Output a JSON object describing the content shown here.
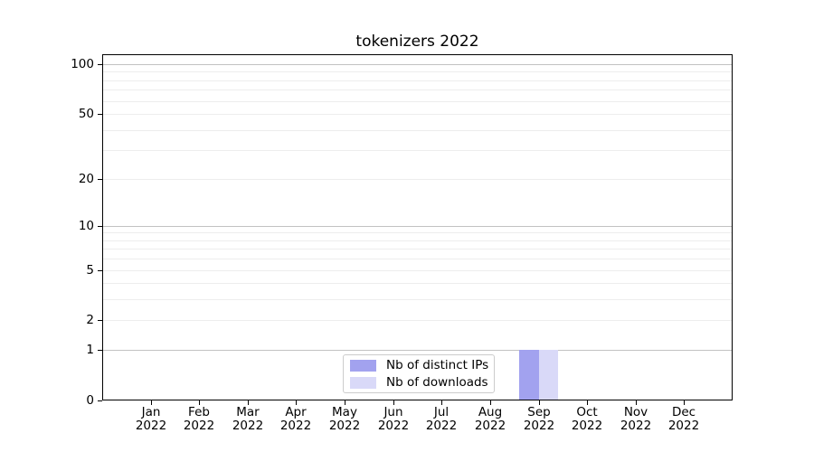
{
  "chart_data": {
    "type": "bar",
    "title": "tokenizers 2022",
    "categories": [
      "Jan 2022",
      "Feb 2022",
      "Mar 2022",
      "Apr 2022",
      "May 2022",
      "Jun 2022",
      "Jul 2022",
      "Aug 2022",
      "Sep 2022",
      "Oct 2022",
      "Nov 2022",
      "Dec 2022"
    ],
    "series": [
      {
        "name": "Nb of distinct IPs",
        "color": "#a2a2ef",
        "values": [
          0,
          0,
          0,
          0,
          0,
          0,
          0,
          0,
          1,
          0,
          0,
          0
        ]
      },
      {
        "name": "Nb of downloads",
        "color": "#d9d9f8",
        "values": [
          0,
          0,
          0,
          0,
          0,
          0,
          0,
          0,
          1,
          0,
          0,
          0
        ]
      }
    ],
    "yscale": "log1p",
    "ylim": [
      0,
      115
    ],
    "ytick_labels": [
      0,
      1,
      2,
      5,
      10,
      20,
      50,
      100
    ],
    "grid": {
      "major_values": [
        1,
        10,
        100
      ],
      "minor_values": [
        2,
        3,
        4,
        5,
        6,
        7,
        8,
        9,
        20,
        30,
        40,
        50,
        60,
        70,
        80,
        90
      ]
    },
    "legend": {
      "position": "lower center",
      "entries": [
        "Nb of distinct IPs",
        "Nb of downloads"
      ]
    },
    "colors": {
      "axis": "#000000",
      "major_grid": "#c2c2c2",
      "minor_grid": "#ededed",
      "background": "#ffffff"
    },
    "bar_width_fraction": 0.4
  }
}
